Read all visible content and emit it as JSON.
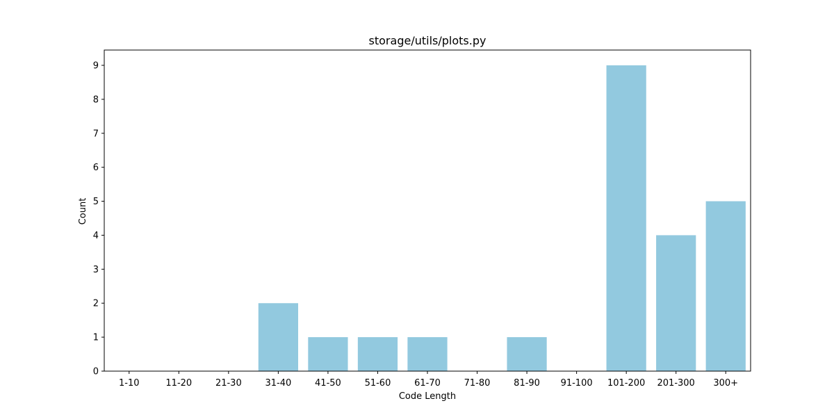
{
  "chart_data": {
    "type": "bar",
    "title": "storage/utils/plots.py",
    "xlabel": "Code Length",
    "ylabel": "Count",
    "categories": [
      "1-10",
      "11-20",
      "21-30",
      "31-40",
      "41-50",
      "51-60",
      "61-70",
      "71-80",
      "81-90",
      "91-100",
      "101-200",
      "201-300",
      "300+"
    ],
    "values": [
      0,
      0,
      0,
      2,
      1,
      1,
      1,
      0,
      1,
      0,
      9,
      4,
      5
    ],
    "ylim": [
      0,
      9.45
    ],
    "yticks": [
      0,
      1,
      2,
      3,
      4,
      5,
      6,
      7,
      8,
      9
    ],
    "grid": false,
    "bar_color": "#92c9df",
    "axis_color": "#000000"
  }
}
